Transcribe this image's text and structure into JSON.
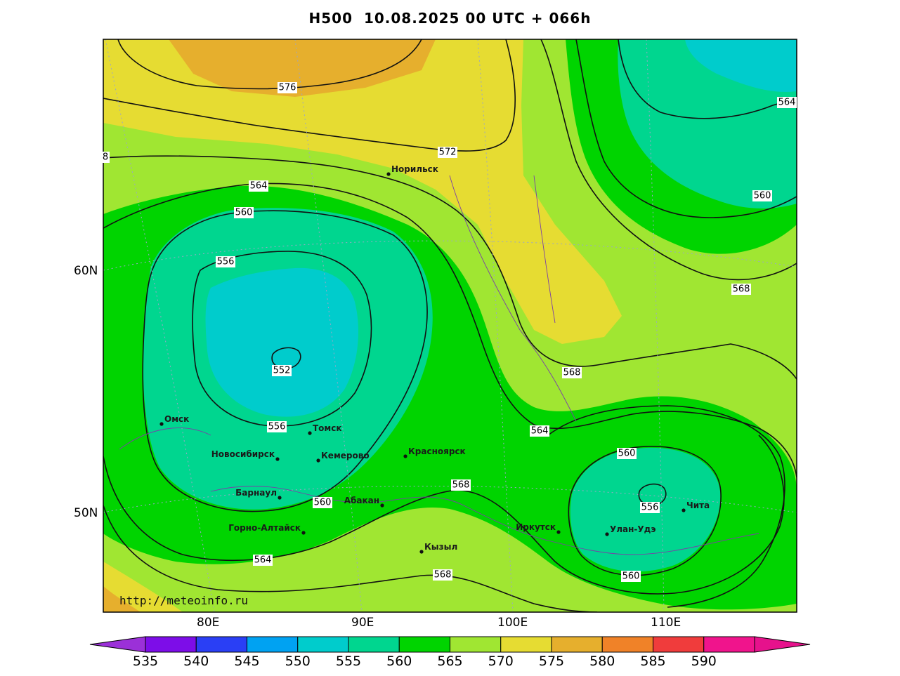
{
  "title": "H500  10.08.2025 00 UTC + 066h",
  "source_url": "http://meteoinfo.ru",
  "axes": {
    "lat_labels": [
      "60N",
      "50N"
    ],
    "lon_labels": [
      "80E",
      "90E",
      "100E",
      "110E"
    ]
  },
  "contour_labels": [
    "576",
    "572",
    "564",
    "560",
    "556",
    "552",
    "556",
    "560",
    "564",
    "568",
    "564",
    "568",
    "560",
    "556",
    "560",
    "564",
    "568",
    "560",
    "568",
    "8",
    "556",
    "560"
  ],
  "cities": [
    {
      "name": "Норильск"
    },
    {
      "name": "Омск"
    },
    {
      "name": "Томск"
    },
    {
      "name": "Новосибирск"
    },
    {
      "name": "Кемерово"
    },
    {
      "name": "Красноярск"
    },
    {
      "name": "Барнаул"
    },
    {
      "name": "Абакан"
    },
    {
      "name": "Горно-Алтайск"
    },
    {
      "name": "Кызыл"
    },
    {
      "name": "Иркутск"
    },
    {
      "name": "Улан-Удэ"
    },
    {
      "name": "Чита"
    }
  ],
  "colorbar": {
    "ticks": [
      "535",
      "540",
      "545",
      "550",
      "555",
      "560",
      "565",
      "570",
      "575",
      "580",
      "585",
      "590"
    ],
    "colors": [
      "#8a00d4",
      "#7d0de8",
      "#2a3ff5",
      "#00a2f2",
      "#00cccc",
      "#00d68f",
      "#00d400",
      "#a0e632",
      "#e6dc32",
      "#e6af2d",
      "#f08228",
      "#f03c3c",
      "#f0148c"
    ],
    "under_color": "#9b30d8",
    "over_color": "#e6128c"
  },
  "field_colors": {
    "c550": "#00cccc",
    "c555": "#00d68f",
    "c560": "#00d400",
    "c565": "#a0e632",
    "c570": "#a0e632",
    "c575": "#e6dc32",
    "c580": "#e6af2d"
  }
}
